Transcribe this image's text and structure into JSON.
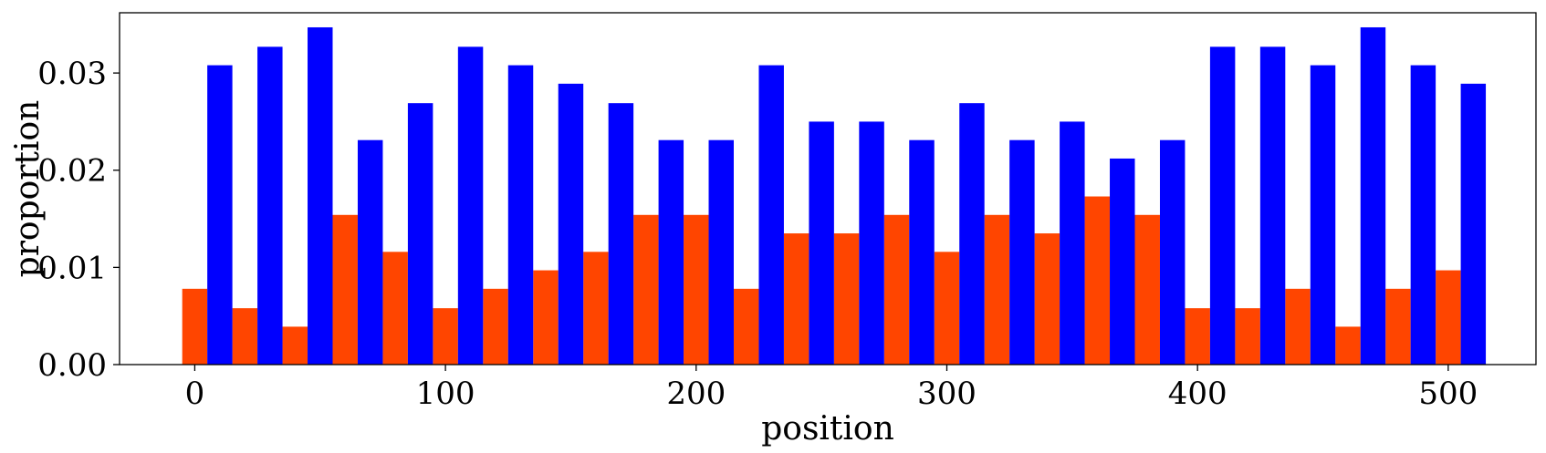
{
  "chart_data": {
    "type": "bar",
    "xlabel": "position",
    "ylabel": "proportion",
    "xlim": [
      -30,
      535
    ],
    "ylim": [
      0,
      0.0362
    ],
    "xticks": [
      0,
      100,
      200,
      300,
      400,
      500
    ],
    "xtick_labels": [
      "0",
      "100",
      "200",
      "300",
      "400",
      "500"
    ],
    "yticks": [
      0.0,
      0.01,
      0.02,
      0.03
    ],
    "ytick_labels": [
      "0.00",
      "0.01",
      "0.02",
      "0.03"
    ],
    "grid": false,
    "legend": "none",
    "bar_width": 10,
    "series": [
      {
        "color": "#ff4500",
        "x": [
          0,
          20,
          40,
          60,
          80,
          100,
          120,
          140,
          160,
          180,
          200,
          220,
          240,
          260,
          280,
          300,
          320,
          340,
          360,
          380,
          400,
          420,
          440,
          460,
          480,
          500
        ],
        "values": [
          0.0078,
          0.0058,
          0.0039,
          0.0154,
          0.0116,
          0.0058,
          0.0078,
          0.0097,
          0.0116,
          0.0154,
          0.0154,
          0.0078,
          0.0135,
          0.0135,
          0.0154,
          0.0116,
          0.0154,
          0.0135,
          0.0173,
          0.0154,
          0.0058,
          0.0058,
          0.0078,
          0.0039,
          0.0078,
          0.0097
        ]
      },
      {
        "color": "#0000ff",
        "x": [
          10,
          30,
          50,
          70,
          90,
          110,
          130,
          150,
          170,
          190,
          210,
          230,
          250,
          270,
          290,
          310,
          330,
          350,
          370,
          390,
          410,
          430,
          450,
          470,
          490,
          510
        ],
        "values": [
          0.0308,
          0.0327,
          0.0347,
          0.0231,
          0.0269,
          0.0327,
          0.0308,
          0.0289,
          0.0269,
          0.0231,
          0.0231,
          0.0308,
          0.025,
          0.025,
          0.0231,
          0.0269,
          0.0231,
          0.025,
          0.0212,
          0.0231,
          0.0327,
          0.0327,
          0.0308,
          0.0347,
          0.0308,
          0.0289
        ]
      }
    ]
  }
}
